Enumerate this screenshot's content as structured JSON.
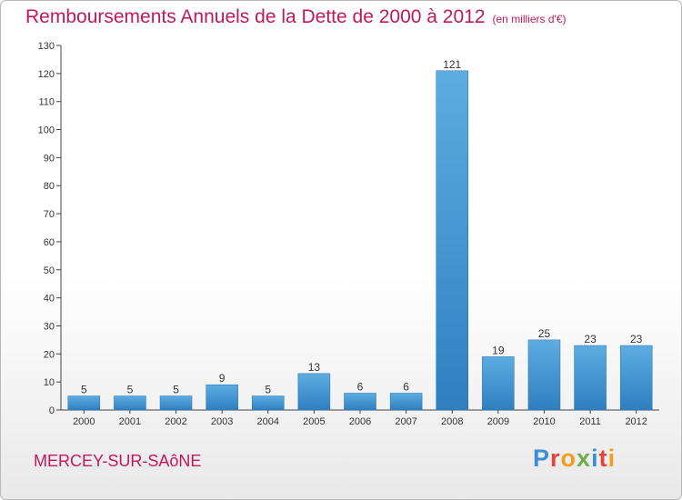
{
  "title": "Remboursements Annuels de la Dette de 2000 à 2012",
  "subtitle": "(en milliers d'€)",
  "town": "MERCEY-SUR-SAôNE",
  "brand": {
    "text": "Proxiti",
    "letter_colors": [
      "#3b8fd4",
      "#e8433c",
      "#f39c1f",
      "#6ab04c",
      "#3b8fd4",
      "#e8433c",
      "#f39c1f"
    ]
  },
  "colors": {
    "bar_light": "#5dade2",
    "bar_dark": "#2e7fc0",
    "text": "#333333",
    "accent": "#c2185b"
  },
  "chart_data": {
    "type": "bar",
    "title": "Remboursements Annuels de la Dette de 2000 à 2012",
    "categories": [
      "2000",
      "2001",
      "2002",
      "2003",
      "2004",
      "2005",
      "2006",
      "2007",
      "2008",
      "2009",
      "2010",
      "2011",
      "2012"
    ],
    "values": [
      5,
      5,
      5,
      9,
      5,
      13,
      6,
      6,
      121,
      19,
      25,
      23,
      23
    ],
    "ylim": [
      0,
      130
    ],
    "yticks": [
      0,
      10,
      20,
      30,
      40,
      50,
      60,
      70,
      80,
      90,
      100,
      110,
      120,
      130
    ],
    "grid": false,
    "xlabel": "",
    "ylabel": ""
  }
}
